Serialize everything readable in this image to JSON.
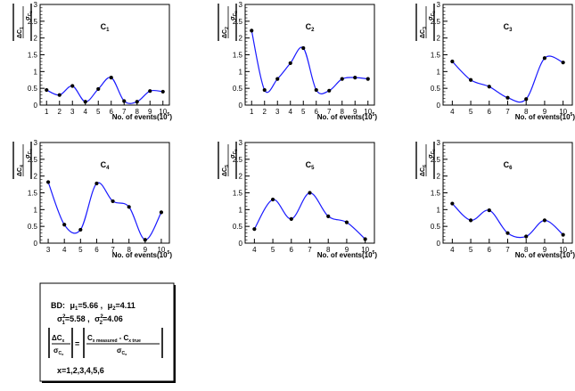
{
  "chart_data": [
    {
      "type": "line",
      "name": "C1",
      "title": "C",
      "title_sub": "1",
      "xlabel": "No. of events(10",
      "xlabel_exp": "5",
      "xlabel_close": ")",
      "ylabel": {
        "top": "ΔC",
        "top_sub": "1",
        "bottom": "σ",
        "bottom_sub": "C",
        "bottom_subsub": "1"
      },
      "xlim": [
        0.5,
        10.5
      ],
      "ylim": [
        0,
        3
      ],
      "xticks": [
        "1",
        "2",
        "3",
        "4",
        "5",
        "6",
        "7",
        "8",
        "9",
        "10"
      ],
      "yticks": [
        "0",
        "0.5",
        "1",
        "1.5",
        "2",
        "2.5",
        "3"
      ],
      "x": [
        1,
        2,
        3,
        4,
        5,
        6,
        7,
        8,
        9,
        10
      ],
      "y": [
        0.45,
        0.3,
        0.57,
        0.1,
        0.48,
        0.82,
        0.12,
        0.1,
        0.42,
        0.4
      ]
    },
    {
      "type": "line",
      "name": "C2",
      "title": "C",
      "title_sub": "2",
      "xlabel": "No. of events(10",
      "xlabel_exp": "5",
      "xlabel_close": ")",
      "ylabel": {
        "top": "ΔC",
        "top_sub": "2",
        "bottom": "σ",
        "bottom_sub": "C",
        "bottom_subsub": "2"
      },
      "xlim": [
        0.5,
        10.5
      ],
      "ylim": [
        0,
        3
      ],
      "xticks": [
        "1",
        "2",
        "3",
        "4",
        "5",
        "6",
        "7",
        "8",
        "9",
        "10"
      ],
      "yticks": [
        "0",
        "0.5",
        "1",
        "1.5",
        "2",
        "2.5",
        "3"
      ],
      "x": [
        1,
        2,
        3,
        4,
        5,
        6,
        7,
        8,
        9,
        10
      ],
      "y": [
        2.22,
        0.45,
        0.78,
        1.25,
        1.7,
        0.45,
        0.43,
        0.78,
        0.82,
        0.78
      ]
    },
    {
      "type": "line",
      "name": "C3",
      "title": "C",
      "title_sub": "3",
      "xlabel": "No. of events(10",
      "xlabel_exp": "5",
      "xlabel_close": ")",
      "ylabel": {
        "top": "ΔC",
        "top_sub": "3",
        "bottom": "σ",
        "bottom_sub": "C",
        "bottom_subsub": "3"
      },
      "xlim": [
        3.5,
        10.5
      ],
      "ylim": [
        0,
        3
      ],
      "xticks": [
        "4",
        "5",
        "6",
        "7",
        "8",
        "9",
        "10"
      ],
      "yticks": [
        "0",
        "0.5",
        "1",
        "1.5",
        "2",
        "2.5",
        "3"
      ],
      "x": [
        4,
        5,
        6,
        7,
        8,
        9,
        10
      ],
      "y": [
        1.3,
        0.75,
        0.55,
        0.22,
        0.18,
        1.4,
        1.27
      ]
    },
    {
      "type": "line",
      "name": "C4",
      "title": "C",
      "title_sub": "4",
      "xlabel": "No. of events(10",
      "xlabel_exp": "5",
      "xlabel_close": ")",
      "ylabel": {
        "top": "ΔC",
        "top_sub": "4",
        "bottom": "σ",
        "bottom_sub": "C",
        "bottom_subsub": "4"
      },
      "xlim": [
        2.5,
        10.5
      ],
      "ylim": [
        0,
        3
      ],
      "xticks": [
        "3",
        "4",
        "5",
        "6",
        "7",
        "8",
        "9",
        "10"
      ],
      "yticks": [
        "0",
        "0.5",
        "1",
        "1.5",
        "2",
        "2.5",
        "3"
      ],
      "x": [
        3,
        4,
        5,
        6,
        7,
        8,
        9,
        10
      ],
      "y": [
        1.82,
        0.55,
        0.4,
        1.78,
        1.25,
        1.08,
        0.1,
        0.92
      ]
    },
    {
      "type": "line",
      "name": "C5",
      "title": "C",
      "title_sub": "5",
      "xlabel": "No. of events(10",
      "xlabel_exp": "5",
      "xlabel_close": ")",
      "ylabel": {
        "top": "ΔC",
        "top_sub": "5",
        "bottom": "σ",
        "bottom_sub": "C",
        "bottom_subsub": "5"
      },
      "xlim": [
        3.5,
        10.5
      ],
      "ylim": [
        0,
        3
      ],
      "xticks": [
        "4",
        "5",
        "6",
        "7",
        "8",
        "9",
        "10"
      ],
      "yticks": [
        "0",
        "0.5",
        "1",
        "1.5",
        "2",
        "2.5",
        "3"
      ],
      "x": [
        4,
        5,
        6,
        7,
        8,
        9,
        10
      ],
      "y": [
        0.42,
        1.3,
        0.72,
        1.5,
        0.8,
        0.62,
        0.12
      ]
    },
    {
      "type": "line",
      "name": "C6",
      "title": "C",
      "title_sub": "6",
      "xlabel": "No. of events(10",
      "xlabel_exp": "5",
      "xlabel_close": ")",
      "ylabel": {
        "top": "ΔC",
        "top_sub": "6",
        "bottom": "σ",
        "bottom_sub": "C",
        "bottom_subsub": "6"
      },
      "xlim": [
        3.5,
        10.5
      ],
      "ylim": [
        0,
        3
      ],
      "xticks": [
        "4",
        "5",
        "6",
        "7",
        "8",
        "9",
        "10"
      ],
      "yticks": [
        "0",
        "0.5",
        "1",
        "1.5",
        "2",
        "2.5",
        "3"
      ],
      "x": [
        4,
        5,
        6,
        7,
        8,
        9,
        10
      ],
      "y": [
        1.18,
        0.68,
        0.98,
        0.3,
        0.2,
        0.68,
        0.25
      ]
    }
  ],
  "legend_box": {
    "bd_label": "BD:",
    "mu1": {
      "sym": "μ",
      "sub": "1",
      "val": "=5.66 ,"
    },
    "mu2": {
      "sym": "μ",
      "sub": "2",
      "val": "=4.11"
    },
    "sig1": {
      "sym": "σ",
      "sup": "2",
      "sub": "1",
      "val": "=5.58 ,"
    },
    "sig2": {
      "sym": "σ",
      "sup": "2",
      "sub": "2",
      "val": "=4.06"
    },
    "formula": {
      "lhs_num": "ΔC",
      "lhs_num_sub": "x",
      "lhs_den": "σ",
      "lhs_den_sub": "C",
      "lhs_den_subsub": "x",
      "equals": "=",
      "rhs_num_a": "C",
      "rhs_num_a_sub": "x measured",
      "rhs_minus": "- C",
      "rhs_num_b_sub": "x true",
      "rhs_den": "σ",
      "rhs_den_sub": "C",
      "rhs_den_subsub": "x"
    },
    "x_values": "x=1,2,3,4,5,6"
  }
}
